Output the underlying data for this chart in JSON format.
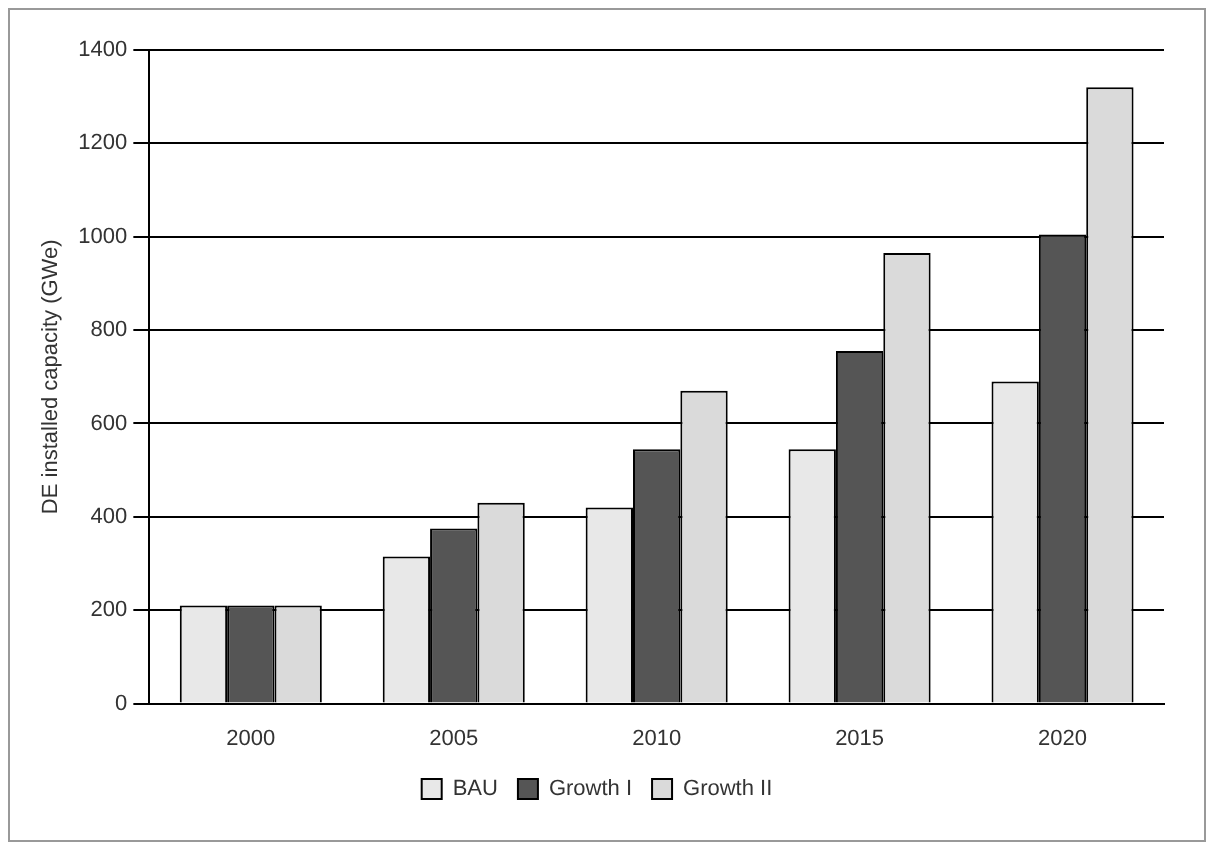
{
  "chart_data": {
    "type": "bar",
    "ylabel": "DE installed capacity (GWe)",
    "categories": [
      "2000",
      "2005",
      "2010",
      "2015",
      "2020"
    ],
    "series": [
      {
        "name": "BAU",
        "color": "#e8e8e8",
        "values": [
          210,
          315,
          420,
          545,
          690
        ]
      },
      {
        "name": "Growth I",
        "color": "#555555",
        "values": [
          210,
          375,
          545,
          755,
          1005
        ]
      },
      {
        "name": "Growth II",
        "color": "#dadada",
        "values": [
          210,
          430,
          670,
          965,
          1320
        ]
      }
    ],
    "ylim": [
      0,
      1400
    ],
    "yticks": [
      0,
      200,
      400,
      600,
      800,
      1000,
      1200,
      1400
    ],
    "grid": "y",
    "legend": "bottom"
  }
}
